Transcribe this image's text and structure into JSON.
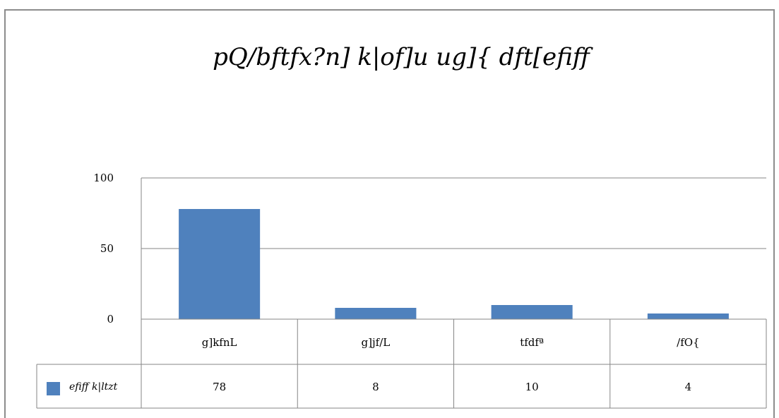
{
  "chart_data": {
    "type": "bar",
    "title": "pQ/bftfx?n] k|of]u ug]{ dft[efiff",
    "xlabel": "",
    "ylabel": "",
    "categories": [
      "g]kfnL",
      "g]jf/L",
      "tfdfª",
      "/fO{"
    ],
    "series": [
      {
        "name": "efiff k|ltzt",
        "values": [
          78,
          8,
          10,
          4
        ],
        "color": "#4f81bd"
      }
    ],
    "yticks": [
      0,
      50,
      100
    ],
    "ylim": [
      0,
      100
    ],
    "grid": true,
    "legend": "data-table-left",
    "data_table": true
  }
}
